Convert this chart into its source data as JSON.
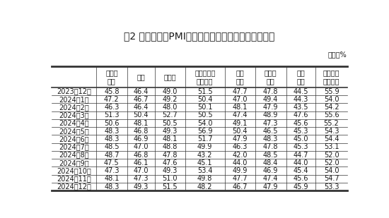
{
  "title": "表2 中国制造业PMI其他相关指标情况（经季节调整）",
  "unit_label": "单位：%",
  "col_headers": [
    "新出口\n订单",
    "进口",
    "采购量",
    "主要原材料\n购进价格",
    "出厂\n价格",
    "产成品\n库存",
    "在手\n订单",
    "生产经营\n活动预期"
  ],
  "row_headers": [
    "2023年12月",
    "2024年1月",
    "2024年2月",
    "2024年3月",
    "2024年4月",
    "2024年5月",
    "2024年6月",
    "2024年7月",
    "2024年8月",
    "2024年9月",
    "2024年10月",
    "2024年11月",
    "2024年12月"
  ],
  "data": [
    [
      45.8,
      46.4,
      49.0,
      51.5,
      47.7,
      47.8,
      44.5,
      55.9
    ],
    [
      47.2,
      46.7,
      49.2,
      50.4,
      47.0,
      49.4,
      44.3,
      54.0
    ],
    [
      46.3,
      46.4,
      48.0,
      50.1,
      48.1,
      47.9,
      43.5,
      54.2
    ],
    [
      51.3,
      50.4,
      52.7,
      50.5,
      47.4,
      48.9,
      47.6,
      55.6
    ],
    [
      50.6,
      48.1,
      50.5,
      54.0,
      49.1,
      47.3,
      45.6,
      55.2
    ],
    [
      48.3,
      46.8,
      49.3,
      56.9,
      50.4,
      46.5,
      45.3,
      54.3
    ],
    [
      48.3,
      46.9,
      48.1,
      51.7,
      47.9,
      48.3,
      45.0,
      54.4
    ],
    [
      48.5,
      47.0,
      48.8,
      49.9,
      46.3,
      47.8,
      45.3,
      53.1
    ],
    [
      48.7,
      46.8,
      47.8,
      43.2,
      42.0,
      48.5,
      44.7,
      52.0
    ],
    [
      47.5,
      46.1,
      47.6,
      45.1,
      44.0,
      48.4,
      44.0,
      52.0
    ],
    [
      47.3,
      47.0,
      49.3,
      53.4,
      49.9,
      46.9,
      45.4,
      54.0
    ],
    [
      48.1,
      47.3,
      51.0,
      49.8,
      47.7,
      47.4,
      45.6,
      54.7
    ],
    [
      48.3,
      49.3,
      51.5,
      48.2,
      46.7,
      47.9,
      45.9,
      53.3
    ]
  ],
  "bg_color": "#ffffff",
  "text_color": "#1a1a1a",
  "line_color": "#333333",
  "title_fontsize": 10,
  "body_fontsize": 7,
  "header_fontsize": 7
}
